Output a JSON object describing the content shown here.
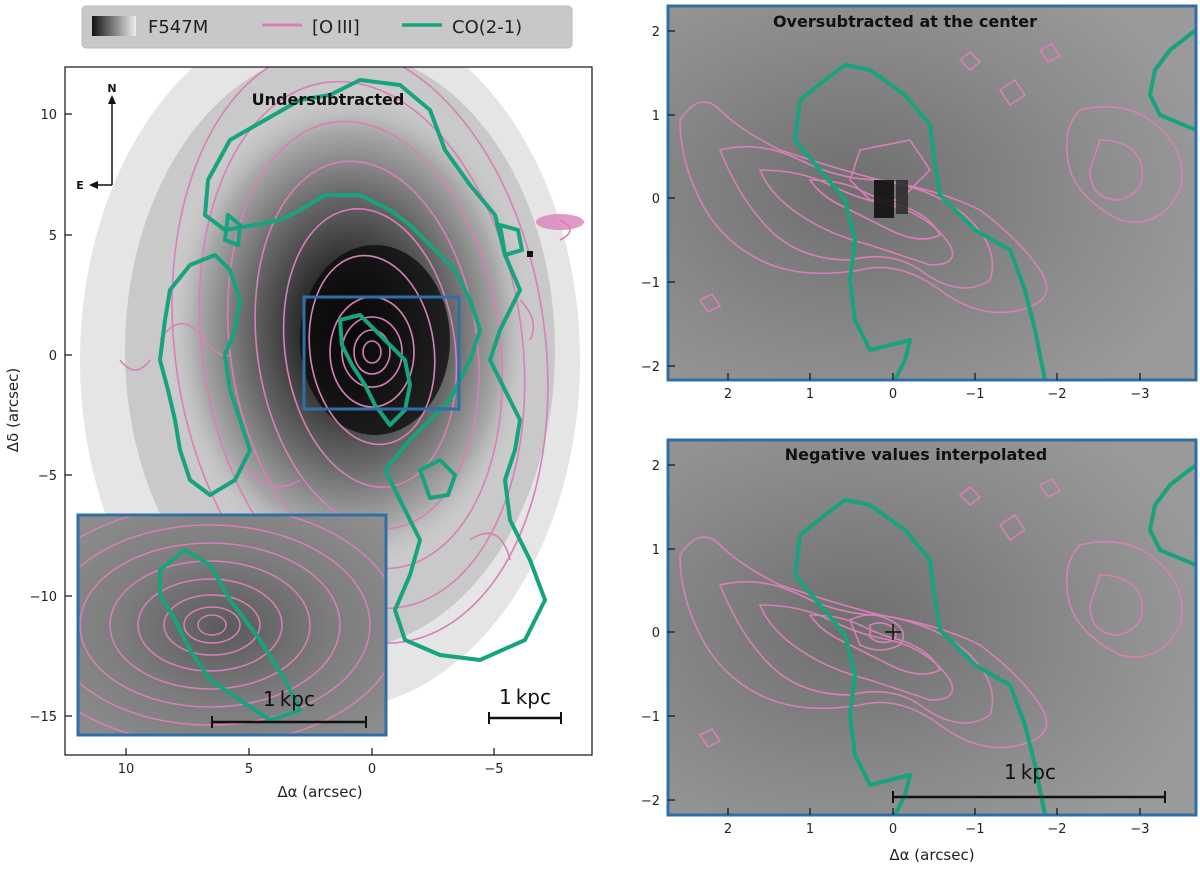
{
  "legend": {
    "items": [
      {
        "label": "F547M",
        "kind": "grayscale"
      },
      {
        "label": "[O III]",
        "kind": "line",
        "color": "#d97fb8"
      },
      {
        "label": "CO(2-1)",
        "kind": "line",
        "color": "#16a37e"
      }
    ]
  },
  "colors": {
    "oiii": "#d97fb8",
    "co": "#16a37e",
    "inset_frame": "#2f6fa8",
    "scale_bar": "#111111"
  },
  "main_panel": {
    "title": "Undersubtracted",
    "xlabel": "Δα (arcsec)",
    "ylabel": "Δδ (arcsec)",
    "xticks": [
      "10",
      "5",
      "0",
      "−5"
    ],
    "yticks": [
      "10",
      "5",
      "0",
      "−5",
      "−10",
      "−15"
    ],
    "compass": {
      "north": "N",
      "east": "E"
    },
    "scale_bar": "1 kpc",
    "inset_scale_bar": "1 kpc"
  },
  "panel_top_right": {
    "title": "Oversubtracted at the center",
    "xticks": [
      "2",
      "1",
      "0",
      "−1",
      "−2",
      "−3"
    ],
    "yticks": [
      "2",
      "1",
      "0",
      "−1",
      "−2"
    ]
  },
  "panel_bottom_right": {
    "title": "Negative values interpolated",
    "xlabel": "Δα (arcsec)",
    "xticks": [
      "2",
      "1",
      "0",
      "−1",
      "−2",
      "−3"
    ],
    "yticks": [
      "2",
      "1",
      "0",
      "−1",
      "−2"
    ],
    "scale_bar": "1 kpc"
  }
}
